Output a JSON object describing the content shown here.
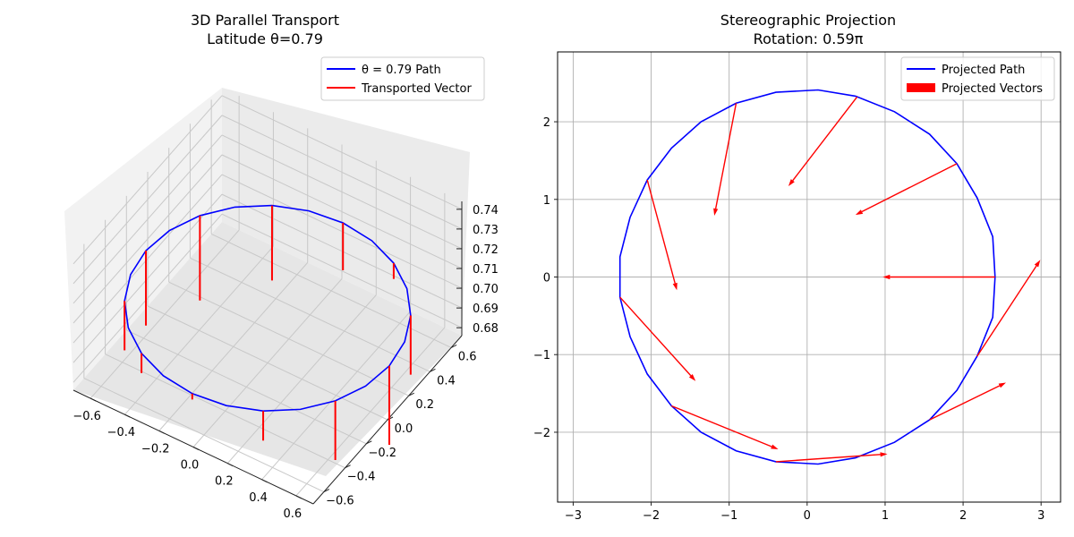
{
  "figure": {
    "width": 1200,
    "height": 600
  },
  "chart_data": [
    {
      "id": "left",
      "type": "line",
      "projection": "3d",
      "title": "3D Parallel Transport",
      "subtitle": "Latitude θ=0.79",
      "xlim": [
        -0.7,
        0.7
      ],
      "ylim": [
        -0.7,
        0.7
      ],
      "zlim": [
        0.676,
        0.744
      ],
      "x_ticks": [
        -0.6,
        -0.4,
        -0.2,
        0.0,
        0.2,
        0.4,
        0.6
      ],
      "x_tick_labels": [
        "−0.6",
        "−0.4",
        "−0.2",
        "0.0",
        "0.2",
        "0.4",
        "0.6"
      ],
      "y_ticks": [
        -0.6,
        -0.4,
        -0.2,
        0.0,
        0.2,
        0.4,
        0.6
      ],
      "y_tick_labels": [
        "−0.6",
        "−0.4",
        "−0.2",
        "0.0",
        "0.2",
        "0.4",
        "0.6"
      ],
      "z_ticks": [
        0.68,
        0.69,
        0.7,
        0.71,
        0.72,
        0.73,
        0.74
      ],
      "z_tick_labels": [
        "0.68",
        "0.69",
        "0.70",
        "0.71",
        "0.72",
        "0.73",
        "0.74"
      ],
      "grid": true,
      "legend": {
        "location": "upper right",
        "entries": [
          "θ = 0.79 Path",
          "Transported Vector"
        ]
      },
      "path": {
        "name": "θ = 0.79 Path",
        "color": "#0000ff",
        "radius": 0.7102,
        "z": 0.7037,
        "points": 24
      },
      "vectors": {
        "name": "Transported Vector",
        "color": "#ff0000",
        "items": [
          {
            "angle_deg": 0,
            "dz": -0.04
          },
          {
            "angle_deg": 30,
            "dz": -0.03
          },
          {
            "angle_deg": 60,
            "dz": -0.008
          },
          {
            "angle_deg": 90,
            "dz": -0.024
          },
          {
            "angle_deg": 120,
            "dz": -0.038
          },
          {
            "angle_deg": 150,
            "dz": -0.043
          },
          {
            "angle_deg": 180,
            "dz": -0.038
          },
          {
            "angle_deg": 210,
            "dz": -0.025
          },
          {
            "angle_deg": 240,
            "dz": -0.01
          },
          {
            "angle_deg": 270,
            "dz": -0.003
          },
          {
            "angle_deg": 300,
            "dz": -0.015
          },
          {
            "angle_deg": 330,
            "dz": -0.03
          }
        ]
      }
    },
    {
      "id": "right",
      "type": "line",
      "title": "Stereographic Projection",
      "subtitle": "Rotation: 0.59π",
      "xlim": [
        -3.2,
        3.25
      ],
      "ylim": [
        -2.9,
        2.9
      ],
      "x_ticks": [
        -3,
        -2,
        -1,
        0,
        1,
        2,
        3
      ],
      "x_tick_labels": [
        "−3",
        "−2",
        "−1",
        "0",
        "1",
        "2",
        "3"
      ],
      "y_ticks": [
        -2,
        -1,
        0,
        1,
        2
      ],
      "y_tick_labels": [
        "−2",
        "−1",
        "0",
        "1",
        "2"
      ],
      "grid": true,
      "legend": {
        "location": "upper right",
        "entries": [
          "Projected Path",
          "Projected Vectors"
        ]
      },
      "path": {
        "name": "Projected Path",
        "color": "#0000ff",
        "x": [
          2.41,
          2.38,
          2.18,
          1.92,
          1.57,
          1.12,
          0.62,
          0.14,
          -0.4,
          -0.91,
          -1.36,
          -1.74,
          -2.05,
          -2.27,
          -2.4,
          -2.4,
          -2.27,
          -2.05,
          -1.74,
          -1.36,
          -0.91,
          -0.4,
          0.14,
          0.62,
          1.12,
          1.57,
          1.92,
          2.18,
          2.38,
          2.41
        ],
        "y": [
          0.0,
          0.52,
          1.02,
          1.46,
          1.84,
          2.13,
          2.33,
          2.41,
          2.38,
          2.24,
          2.0,
          1.66,
          1.25,
          0.77,
          0.26,
          -0.26,
          -0.77,
          -1.25,
          -1.66,
          -2.0,
          -2.24,
          -2.38,
          -2.41,
          -2.33,
          -2.13,
          -1.84,
          -1.46,
          -1.02,
          -0.52,
          0.0
        ]
      },
      "vectors": {
        "name": "Projected Vectors",
        "color": "#ff0000",
        "items": [
          {
            "x": 2.41,
            "y": 0.0,
            "dx": -1.44,
            "dy": 0.0
          },
          {
            "x": 1.92,
            "y": 1.46,
            "dx": -1.3,
            "dy": -0.66
          },
          {
            "x": 0.64,
            "y": 2.32,
            "dx": -0.88,
            "dy": -1.15
          },
          {
            "x": -0.91,
            "y": 2.24,
            "dx": -0.28,
            "dy": -1.45
          },
          {
            "x": -2.05,
            "y": 1.25,
            "dx": 0.38,
            "dy": -1.42
          },
          {
            "x": -2.4,
            "y": -0.26,
            "dx": 0.97,
            "dy": -1.08
          },
          {
            "x": -1.74,
            "y": -1.66,
            "dx": 1.37,
            "dy": -0.56
          },
          {
            "x": -0.4,
            "y": -2.38,
            "dx": 1.43,
            "dy": 0.1
          },
          {
            "x": 1.57,
            "y": -1.84,
            "dx": 0.98,
            "dy": 0.48
          },
          {
            "x": 2.18,
            "y": -1.02,
            "dx": 0.81,
            "dy": 1.24
          }
        ]
      }
    }
  ]
}
